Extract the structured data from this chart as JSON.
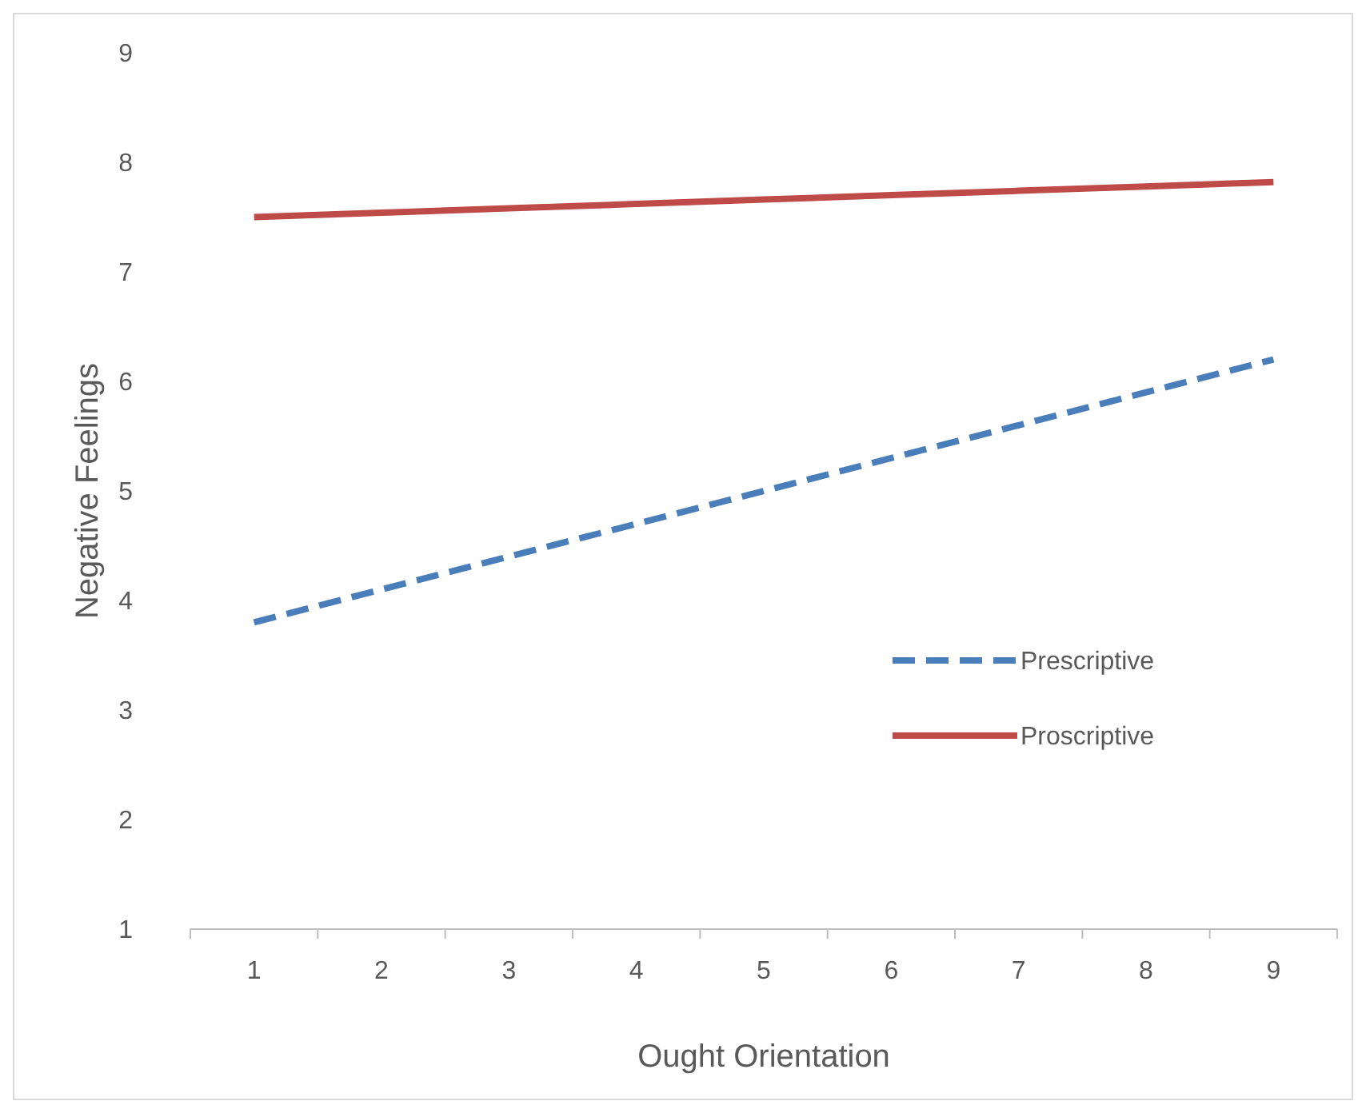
{
  "chart_data": {
    "type": "line",
    "xlabel": "Ought Orientation",
    "ylabel": "Negative Feelings",
    "categories": [
      "1",
      "2",
      "3",
      "4",
      "5",
      "6",
      "7",
      "8",
      "9"
    ],
    "series": [
      {
        "name": "Prescriptive",
        "color": "#4a7ebb",
        "line_style": "dashed",
        "values": [
          3.8,
          4.1,
          4.4,
          4.7,
          5.0,
          5.3,
          5.6,
          5.9,
          6.2
        ]
      },
      {
        "name": "Proscriptive",
        "color": "#be4b48",
        "line_style": "solid",
        "values": [
          7.5,
          7.54,
          7.58,
          7.62,
          7.66,
          7.7,
          7.74,
          7.78,
          7.82
        ]
      }
    ],
    "ylim": [
      1,
      9
    ],
    "yticks": [
      1,
      2,
      3,
      4,
      5,
      6,
      7,
      8,
      9
    ],
    "grid": false,
    "legend": "right",
    "marker": "none"
  }
}
